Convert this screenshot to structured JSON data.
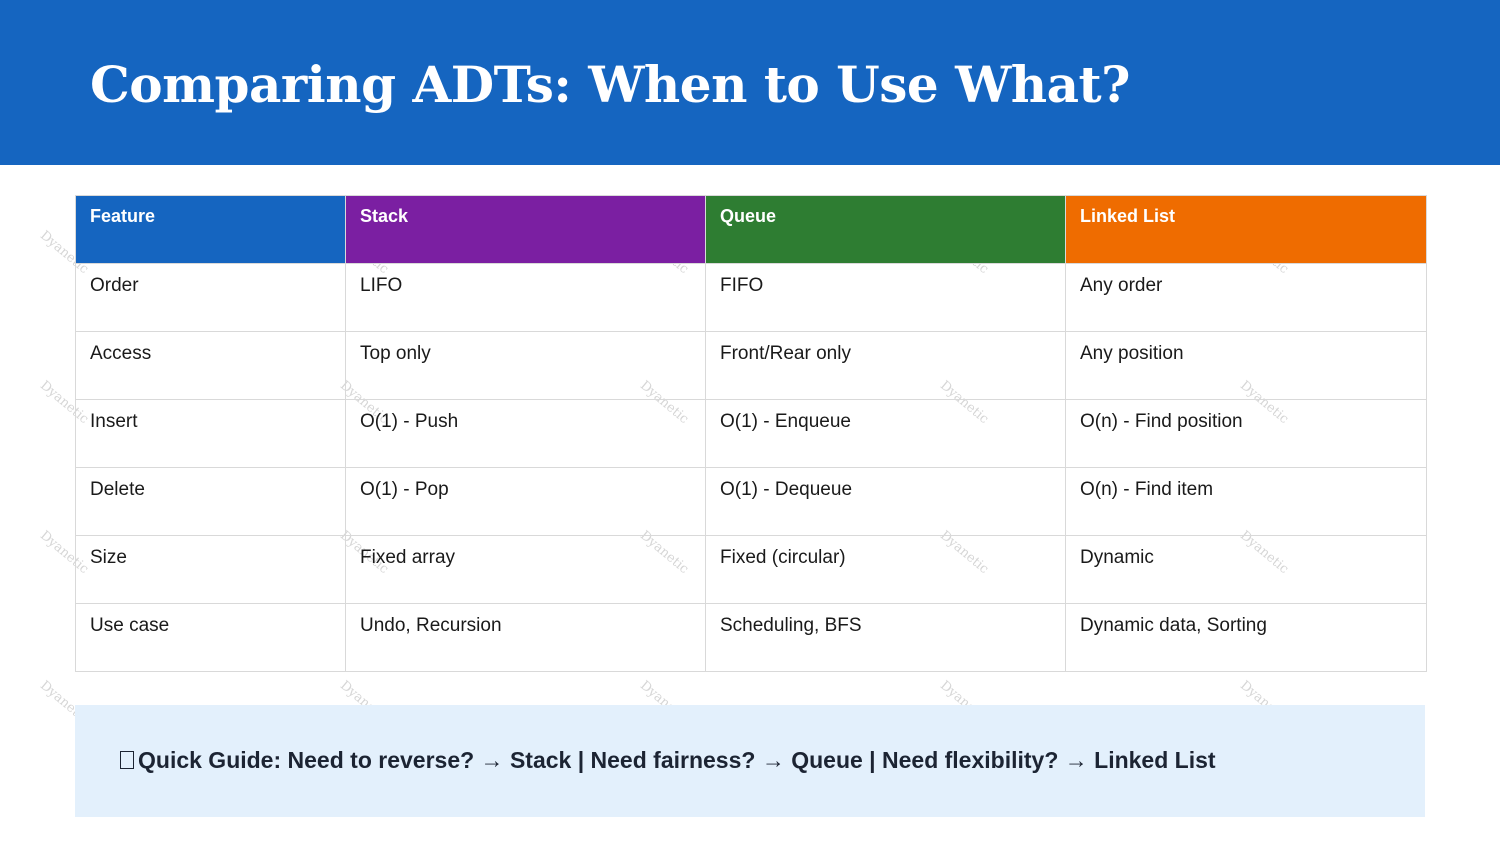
{
  "header": {
    "title": "Comparing ADTs: When to Use What?",
    "background": "#1565c0"
  },
  "table": {
    "columns": [
      {
        "label": "Feature",
        "color": "#1565c0"
      },
      {
        "label": "Stack",
        "color": "#7b1fa2"
      },
      {
        "label": "Queue",
        "color": "#2e7d32"
      },
      {
        "label": "Linked List",
        "color": "#ef6c00"
      }
    ],
    "rows": [
      [
        "Order",
        "LIFO",
        "FIFO",
        "Any order"
      ],
      [
        "Access",
        "Top only",
        "Front/Rear only",
        "Any position"
      ],
      [
        "Insert",
        "O(1) - Push",
        "O(1) - Enqueue",
        "O(n) - Find position"
      ],
      [
        "Delete",
        "O(1) - Pop",
        "O(1) - Dequeue",
        "O(n) - Find item"
      ],
      [
        "Size",
        "Fixed array",
        "Fixed (circular)",
        "Dynamic"
      ],
      [
        "Use case",
        "Undo, Recursion",
        "Scheduling, BFS",
        "Dynamic data, Sorting"
      ]
    ]
  },
  "guide": {
    "icon": "lightbulb-icon",
    "text": "Quick Guide: Need to reverse? → Stack | Need fairness? → Queue | Need flexibility? → Linked List",
    "background": "#e3f0fc"
  },
  "watermark": {
    "text": "Dyanetic"
  }
}
